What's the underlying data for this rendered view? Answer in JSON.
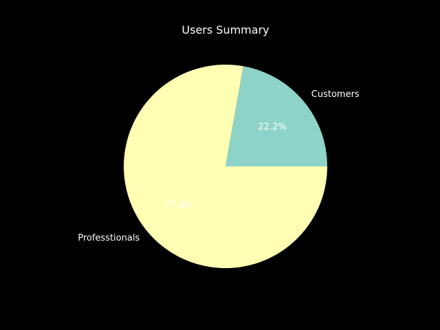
{
  "chart_data": {
    "type": "pie",
    "title": "Users Summary",
    "slices": [
      {
        "label": "Customers",
        "value": 22.2,
        "pct_label": "22.2%",
        "color": "#8dd3c7"
      },
      {
        "label": "Professtionals",
        "value": 77.8,
        "pct_label": "77.8%",
        "color": "#ffffb3"
      }
    ],
    "start_angle_deg": 0,
    "direction": "counterclockwise",
    "background": "#000000",
    "text_color": "#ffffff"
  }
}
